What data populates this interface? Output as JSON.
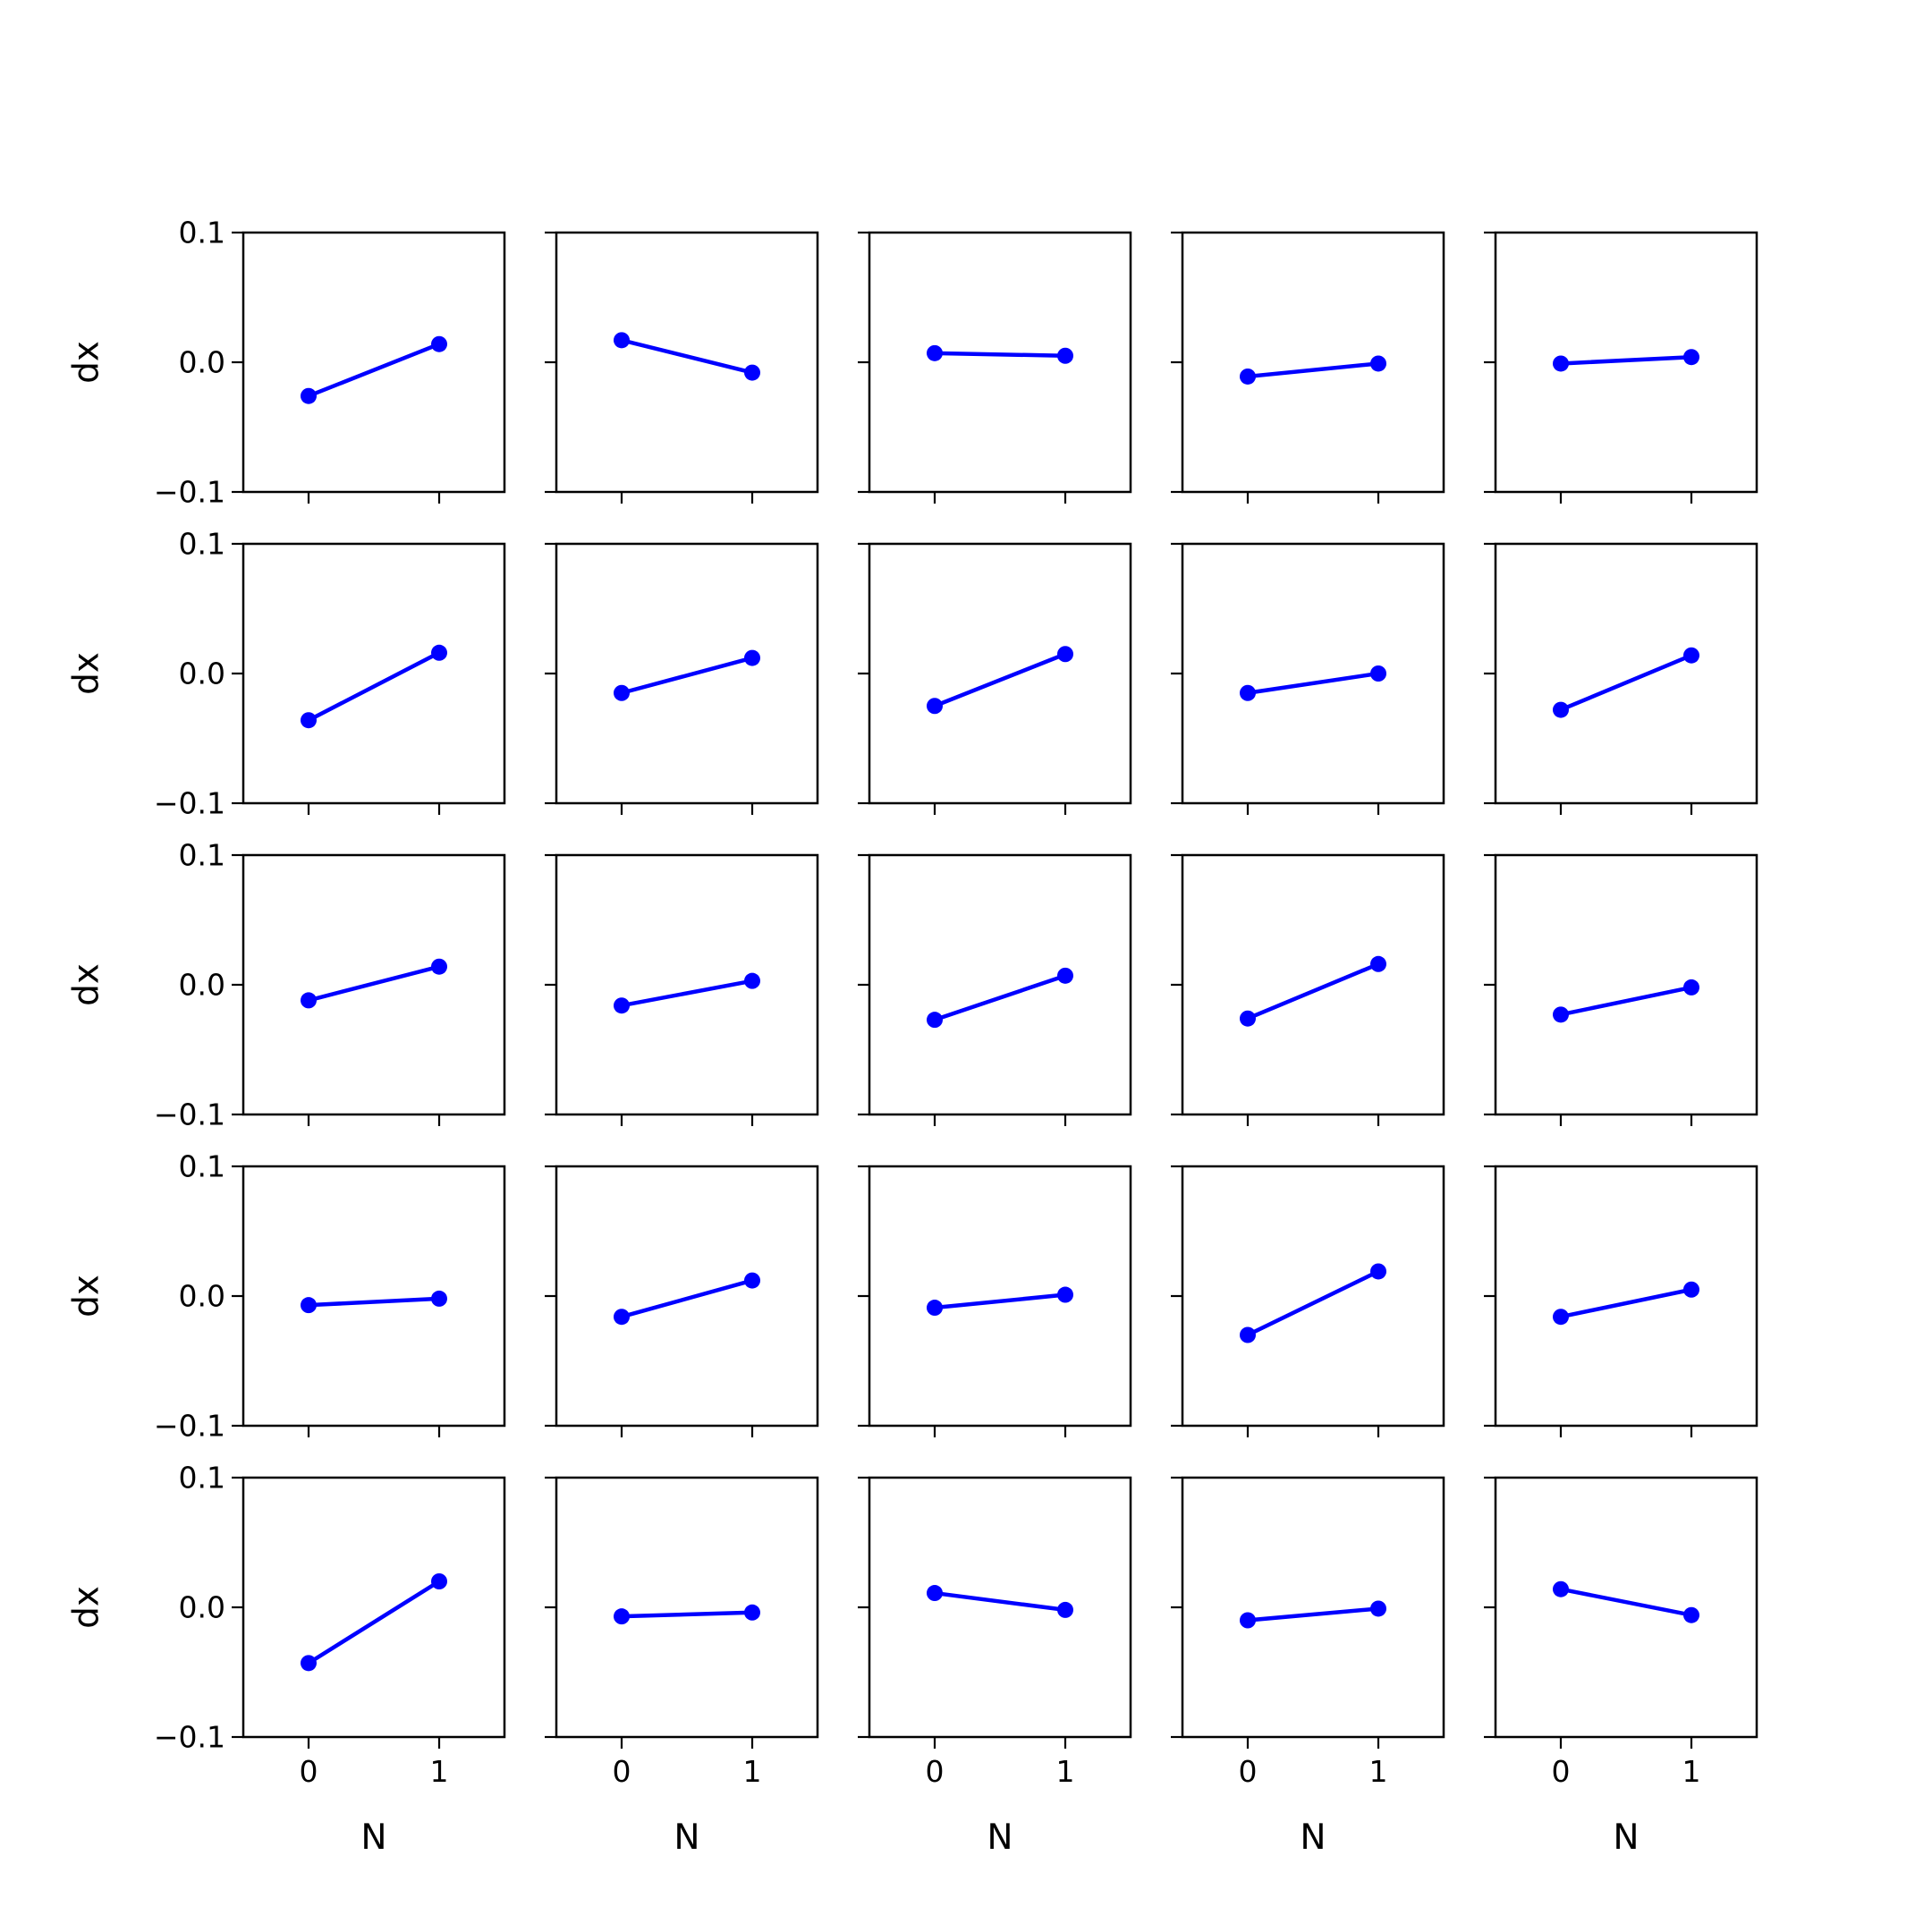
{
  "figure": {
    "rows": 5,
    "cols": 5,
    "line_color": "#0000ff",
    "axis_color": "#000000"
  },
  "chart_data": {
    "type": "line",
    "grid": false,
    "xlabel": "N",
    "ylabel": "dx",
    "xlim": [
      -0.5,
      1.5
    ],
    "ylim": [
      -0.1,
      0.1
    ],
    "xticks": [
      0,
      1
    ],
    "xtick_labels": [
      "0",
      "1"
    ],
    "yticks": [
      -0.1,
      0.0,
      0.1
    ],
    "ytick_labels": [
      "−0.1",
      "0.0",
      "0.1"
    ],
    "panels": [
      {
        "x": [
          0,
          1
        ],
        "y": [
          -0.026,
          0.014
        ]
      },
      {
        "x": [
          0,
          1
        ],
        "y": [
          0.017,
          -0.008
        ]
      },
      {
        "x": [
          0,
          1
        ],
        "y": [
          0.007,
          0.005
        ]
      },
      {
        "x": [
          0,
          1
        ],
        "y": [
          -0.011,
          -0.001
        ]
      },
      {
        "x": [
          0,
          1
        ],
        "y": [
          -0.001,
          0.004
        ]
      },
      {
        "x": [
          0,
          1
        ],
        "y": [
          -0.036,
          0.016
        ]
      },
      {
        "x": [
          0,
          1
        ],
        "y": [
          -0.015,
          0.012
        ]
      },
      {
        "x": [
          0,
          1
        ],
        "y": [
          -0.025,
          0.015
        ]
      },
      {
        "x": [
          0,
          1
        ],
        "y": [
          -0.015,
          0.0
        ]
      },
      {
        "x": [
          0,
          1
        ],
        "y": [
          -0.028,
          0.014
        ]
      },
      {
        "x": [
          0,
          1
        ],
        "y": [
          -0.012,
          0.014
        ]
      },
      {
        "x": [
          0,
          1
        ],
        "y": [
          -0.016,
          0.003
        ]
      },
      {
        "x": [
          0,
          1
        ],
        "y": [
          -0.027,
          0.007
        ]
      },
      {
        "x": [
          0,
          1
        ],
        "y": [
          -0.026,
          0.016
        ]
      },
      {
        "x": [
          0,
          1
        ],
        "y": [
          -0.023,
          -0.002
        ]
      },
      {
        "x": [
          0,
          1
        ],
        "y": [
          -0.007,
          -0.002
        ]
      },
      {
        "x": [
          0,
          1
        ],
        "y": [
          -0.016,
          0.012
        ]
      },
      {
        "x": [
          0,
          1
        ],
        "y": [
          -0.009,
          0.001
        ]
      },
      {
        "x": [
          0,
          1
        ],
        "y": [
          -0.03,
          0.019
        ]
      },
      {
        "x": [
          0,
          1
        ],
        "y": [
          -0.016,
          0.005
        ]
      },
      {
        "x": [
          0,
          1
        ],
        "y": [
          -0.043,
          0.02
        ]
      },
      {
        "x": [
          0,
          1
        ],
        "y": [
          -0.007,
          -0.004
        ]
      },
      {
        "x": [
          0,
          1
        ],
        "y": [
          0.011,
          -0.002
        ]
      },
      {
        "x": [
          0,
          1
        ],
        "y": [
          -0.01,
          -0.001
        ]
      },
      {
        "x": [
          0,
          1
        ],
        "y": [
          0.014,
          -0.006
        ]
      }
    ]
  }
}
